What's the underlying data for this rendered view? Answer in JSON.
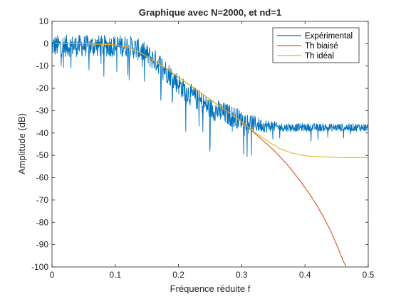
{
  "chart_data": {
    "type": "line",
    "title": "Graphique avec N=2000, et nd=1",
    "xlabel": "Fréquence réduite f",
    "ylabel": "Amplitude (dB)",
    "xlim": [
      0,
      0.5
    ],
    "ylim": [
      -100,
      10
    ],
    "xticks": [
      "0",
      "0.1",
      "0.2",
      "0.3",
      "0.4",
      "0.5"
    ],
    "yticks": [
      "10",
      "0",
      "-10",
      "-20",
      "-30",
      "-40",
      "-50",
      "-60",
      "-70",
      "-80",
      "-90",
      "-100"
    ],
    "grid": false,
    "legend_position": "top-right",
    "series": [
      {
        "name": "Expérimental",
        "color": "#0072BD",
        "x": [
          0,
          0.01,
          0.02,
          0.03,
          0.04,
          0.05,
          0.06,
          0.07,
          0.08,
          0.09,
          0.1,
          0.11,
          0.12,
          0.13,
          0.14,
          0.15,
          0.16,
          0.17,
          0.18,
          0.19,
          0.2,
          0.21,
          0.22,
          0.23,
          0.24,
          0.25,
          0.26,
          0.27,
          0.28,
          0.29,
          0.3,
          0.31,
          0.32,
          0.33,
          0.34,
          0.35,
          0.36,
          0.37,
          0.38,
          0.39,
          0.4,
          0.42,
          0.44,
          0.46,
          0.48,
          0.5
        ],
        "y": [
          -1,
          -1,
          -1,
          -1,
          -1,
          -1,
          -1,
          -1,
          -1,
          -1,
          -1,
          -1,
          -1,
          -2,
          -3,
          -5,
          -7,
          -9,
          -12,
          -15,
          -18,
          -21,
          -23,
          -25,
          -27,
          -29,
          -30,
          -31,
          -32,
          -33,
          -34,
          -35,
          -36,
          -36.5,
          -37,
          -37,
          -37.5,
          -37.5,
          -37.5,
          -37.5,
          -37.5,
          -37.5,
          -37.5,
          -37.5,
          -37.5,
          -37.5
        ],
        "spread": [
          5,
          5,
          5,
          5,
          5,
          5,
          5,
          5,
          5,
          5,
          5,
          5,
          5,
          5,
          5,
          5,
          5,
          5,
          5,
          5,
          5,
          5,
          5,
          5,
          5,
          5,
          5,
          5,
          5,
          5,
          4,
          4,
          4,
          3,
          3,
          2.5,
          2,
          2,
          1.8,
          1.8,
          1.8,
          1.8,
          1.8,
          1.8,
          1.8,
          1.8
        ]
      },
      {
        "name": "Th biaisé",
        "color": "#D95319",
        "x": [
          0,
          0.05,
          0.1,
          0.12,
          0.14,
          0.16,
          0.18,
          0.2,
          0.22,
          0.24,
          0.26,
          0.28,
          0.3,
          0.31,
          0.32,
          0.33,
          0.34,
          0.35,
          0.36,
          0.37,
          0.38,
          0.39,
          0.4,
          0.41,
          0.42,
          0.43,
          0.44,
          0.45,
          0.46,
          0.465
        ],
        "y": [
          0,
          0,
          -0.5,
          -1.5,
          -4,
          -7.5,
          -11,
          -15,
          -19,
          -23,
          -27,
          -31,
          -35,
          -37.5,
          -40,
          -42.5,
          -45,
          -47.5,
          -50.5,
          -53.5,
          -57,
          -60.5,
          -64.5,
          -68.5,
          -73,
          -78,
          -83.5,
          -90,
          -97,
          -100
        ]
      },
      {
        "name": "Th idéal",
        "color": "#EDB120",
        "x": [
          0,
          0.05,
          0.1,
          0.12,
          0.14,
          0.16,
          0.18,
          0.2,
          0.22,
          0.24,
          0.26,
          0.28,
          0.3,
          0.32,
          0.34,
          0.36,
          0.38,
          0.4,
          0.42,
          0.44,
          0.46,
          0.48,
          0.5
        ],
        "y": [
          0,
          0,
          -0.5,
          -1.5,
          -4,
          -7.5,
          -11,
          -15,
          -19,
          -23,
          -27,
          -31,
          -35,
          -39.5,
          -43.5,
          -47,
          -49,
          -50.2,
          -50.6,
          -50.8,
          -51,
          -51,
          -51
        ]
      }
    ]
  }
}
